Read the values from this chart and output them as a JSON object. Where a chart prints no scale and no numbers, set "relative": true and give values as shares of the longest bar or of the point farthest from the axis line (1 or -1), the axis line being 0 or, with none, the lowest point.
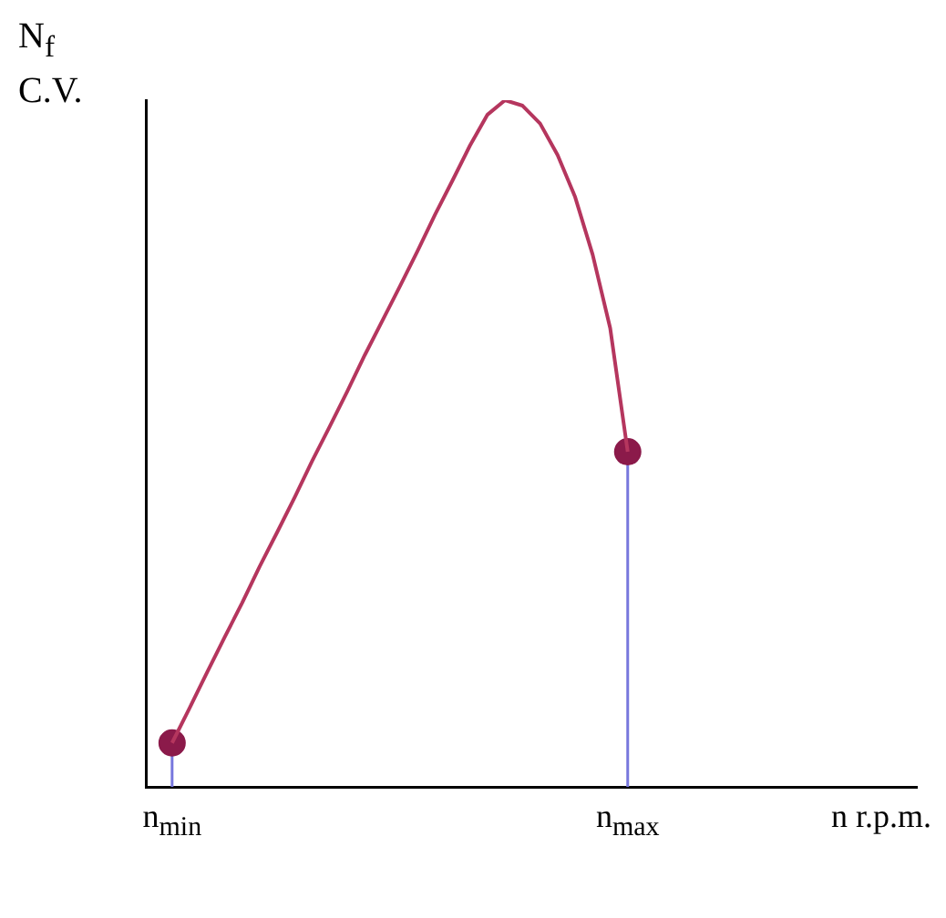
{
  "chart_data": {
    "type": "line",
    "relative": true,
    "xlabel": "n r.p.m.",
    "ylabel": "N$_{f}$ C.V.",
    "categories": [
      null,
      "n$_{min}$",
      null,
      null,
      null,
      null,
      null,
      null,
      null,
      null,
      null,
      null,
      null,
      null,
      null,
      null,
      null,
      null,
      null,
      null,
      null,
      null,
      null,
      null,
      null,
      null,
      null,
      "n$_{max}$",
      null,
      null,
      null,
      null,
      null,
      null,
      null,
      null,
      null,
      null,
      null,
      null,
      null,
      null,
      null,
      null
    ],
    "series": [
      {
        "type": "line",
        "color": "#b5365e",
        "marker": "none",
        "values": [
          null,
          0.064,
          0.115,
          0.167,
          0.218,
          0.268,
          0.321,
          0.371,
          0.422,
          0.475,
          0.525,
          0.576,
          0.629,
          0.679,
          0.729,
          0.78,
          0.833,
          0.883,
          0.934,
          0.979,
          1,
          0.992,
          0.966,
          0.92,
          0.859,
          0.775,
          0.668,
          0.488,
          null,
          null,
          null,
          null,
          null,
          null,
          null,
          null,
          null,
          null,
          null,
          null,
          null,
          null,
          null,
          null
        ]
      },
      {
        "type": "lollipop",
        "color": "#8b1a4a",
        "marker": "circle",
        "values": [
          null,
          0.064,
          null,
          null,
          null,
          null,
          null,
          null,
          null,
          null,
          null,
          null,
          null,
          null,
          null,
          null,
          null,
          null,
          null,
          null,
          null,
          null,
          null,
          null,
          null,
          null,
          null,
          0.488,
          null,
          null,
          null,
          null,
          null,
          null,
          null,
          null,
          null,
          null,
          null,
          null,
          null,
          null,
          null,
          null
        ]
      }
    ],
    "grid": false,
    "legend": false
  }
}
